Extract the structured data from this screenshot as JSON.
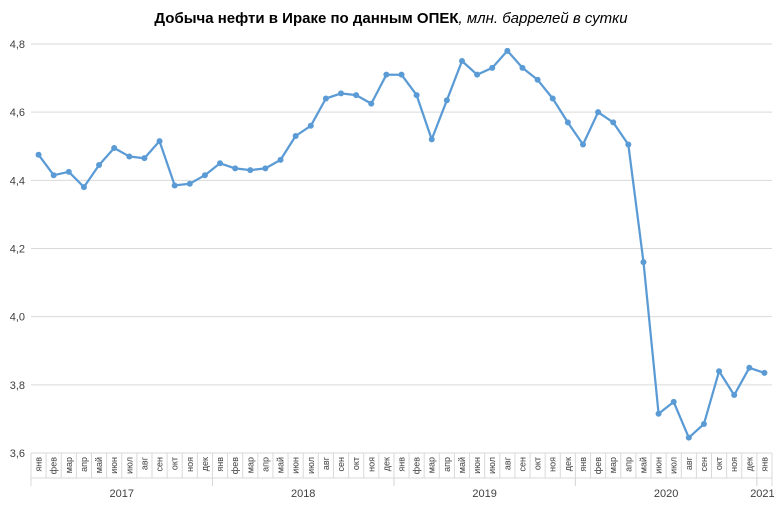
{
  "title": "Добыча  нефти в Ираке по данным ОПЕК",
  "subtitle": ", млн. баррелей в сутки",
  "chart_data": {
    "type": "line",
    "ylim": [
      3.6,
      4.8
    ],
    "yticks": [
      "3,6",
      "3,8",
      "4,0",
      "4,2",
      "4,4",
      "4,6",
      "4,8"
    ],
    "ytick_values": [
      3.6,
      3.8,
      4.0,
      4.2,
      4.4,
      4.6,
      4.8
    ],
    "grid": true,
    "line_color": "#5b9bd5",
    "categories": [
      "янв",
      "фев",
      "мар",
      "апр",
      "май",
      "июн",
      "июл",
      "авг",
      "сен",
      "окт",
      "ноя",
      "дек",
      "янв",
      "фев",
      "мар",
      "апр",
      "май",
      "июн",
      "июл",
      "авг",
      "сен",
      "окт",
      "ноя",
      "дек",
      "янв",
      "фев",
      "мар",
      "апр",
      "май",
      "июн",
      "июл",
      "авг",
      "сен",
      "окт",
      "ноя",
      "дек",
      "янв",
      "фев",
      "мар",
      "апр",
      "май",
      "июн",
      "июл",
      "авг",
      "сен",
      "окт",
      "ноя",
      "дек",
      "янв"
    ],
    "years": [
      {
        "label": "2017",
        "start": 0,
        "count": 12
      },
      {
        "label": "2018",
        "start": 12,
        "count": 12
      },
      {
        "label": "2019",
        "start": 24,
        "count": 12
      },
      {
        "label": "2020",
        "start": 36,
        "count": 12
      },
      {
        "label": "2021",
        "start": 48,
        "count": 1
      }
    ],
    "series": [
      {
        "values": [
          4.475,
          4.415,
          4.425,
          4.38,
          4.445,
          4.495,
          4.47,
          4.465,
          4.515,
          4.385,
          4.39,
          4.415,
          4.45,
          4.435,
          4.43,
          4.435,
          4.46,
          4.53,
          4.56,
          4.64,
          4.655,
          4.65,
          4.625,
          4.71,
          4.71,
          4.65,
          4.52,
          4.635,
          4.75,
          4.71,
          4.73,
          4.78,
          4.73,
          4.695,
          4.64,
          4.57,
          4.505,
          4.6,
          4.57,
          4.505,
          4.16,
          3.715,
          3.75,
          3.645,
          3.685,
          3.84,
          3.77,
          3.85,
          3.835
        ]
      }
    ]
  }
}
